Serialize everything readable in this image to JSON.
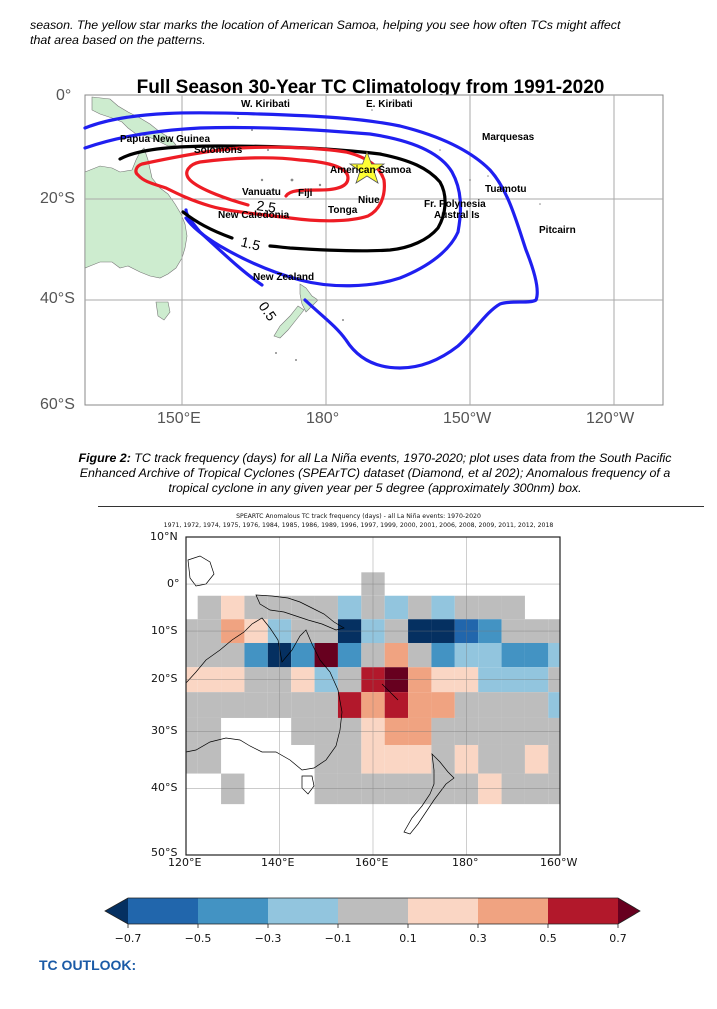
{
  "intro_text": {
    "line1": "season.  The yellow star marks the location of American Samoa, helping you see how often TCs might affect",
    "line2": "that area based on the patterns."
  },
  "figure1": {
    "title": "Full Season 30-Year TC Climatology from 1991-2020",
    "lat_labels": [
      "0°",
      "20°S",
      "40°S",
      "60°S"
    ],
    "lon_labels": [
      "150°E",
      "180°",
      "150°W",
      "120°W"
    ],
    "place_labels": [
      {
        "name": "W. Kiribati"
      },
      {
        "name": "E. Kiribati"
      },
      {
        "name": "Papua New Guinea"
      },
      {
        "name": "Solomons"
      },
      {
        "name": "Marquesas"
      },
      {
        "name": "American Samoa"
      },
      {
        "name": "Tuamotu"
      },
      {
        "name": "Vanuatu"
      },
      {
        "name": "Fiji"
      },
      {
        "name": "Niue"
      },
      {
        "name": "Tonga"
      },
      {
        "name": "Fr. Polynesia"
      },
      {
        "name": "Austral Is"
      },
      {
        "name": "New Caledonia"
      },
      {
        "name": "Pitcairn"
      },
      {
        "name": "New Zealand"
      }
    ],
    "contour_levels": [
      {
        "label": "0.5",
        "color": "#1f1ff0"
      },
      {
        "label": "1.5",
        "color": "#000000"
      },
      {
        "label": "2.5",
        "color": "#ee1c24"
      }
    ],
    "marker": {
      "type": "star",
      "location": "American Samoa",
      "color": "#ffff33"
    },
    "land_color": "#cdeccf"
  },
  "figure2": {
    "caption_bold": "Figure 2:",
    "caption_line1": " TC track frequency (days) for all La Niña events, 1970-2020; plot uses data from the South Pacific",
    "caption_line2": "Enhanced Archive of Tropical Cyclones (SPEArTC) dataset (Diamond, et al 202); Anomalous frequency of a",
    "caption_line3": "tropical cyclone in any given year per 5 degree (approximately 300nm) box."
  },
  "chart_data": {
    "type": "heatmap",
    "title": "SPEARTC Anomalous TC track frequency (days) - all La Niña events: 1970-2020",
    "subtitle": "1971, 1972, 1974, 1975, 1976, 1984, 1985, 1986, 1989, 1996, 1997, 1999, 2000, 2001, 2006, 2008, 2009, 2011, 2012, 2018",
    "x_tick_labels": [
      "120°E",
      "140°E",
      "160°E",
      "180°",
      "160°W"
    ],
    "y_tick_labels": [
      "10°N",
      "0°",
      "10°S",
      "20°S",
      "30°S",
      "40°S",
      "50°S"
    ],
    "lon_range_deg_east": [
      120,
      200
    ],
    "lat_range": [
      -50,
      10
    ],
    "cell_size_deg": 5,
    "lon_centers": [
      120,
      125,
      130,
      135,
      140,
      145,
      150,
      155,
      160,
      165,
      170,
      175,
      180,
      185,
      190,
      195,
      200
    ],
    "lat_centers": [
      0,
      -5,
      -10,
      -15,
      -20,
      -25,
      -30,
      -35,
      -40
    ],
    "note": "values are bin-center anomalies read from the discrete colorbar; null = no data (white)",
    "values": [
      [
        null,
        null,
        null,
        null,
        null,
        null,
        null,
        null,
        0.0,
        null,
        null,
        null,
        null,
        null,
        null,
        null,
        null
      ],
      [
        null,
        0.0,
        0.2,
        0.0,
        0.0,
        0.0,
        0.0,
        -0.2,
        0.0,
        -0.2,
        0.0,
        -0.2,
        0.0,
        0.0,
        0.0,
        null,
        null
      ],
      [
        0.0,
        0.0,
        0.4,
        0.2,
        -0.2,
        0.0,
        0.0,
        -0.8,
        -0.2,
        0.0,
        -0.8,
        -0.8,
        -0.6,
        -0.4,
        0.0,
        0.0,
        0.0
      ],
      [
        0.0,
        0.0,
        0.0,
        -0.4,
        -0.8,
        -0.4,
        0.8,
        -0.4,
        0.0,
        0.4,
        0.0,
        -0.4,
        -0.2,
        -0.2,
        -0.4,
        -0.4,
        -0.2
      ],
      [
        0.2,
        0.2,
        0.2,
        0.0,
        0.0,
        0.2,
        -0.2,
        0.0,
        0.6,
        0.8,
        0.4,
        0.2,
        0.2,
        -0.2,
        -0.2,
        -0.2,
        0.0
      ],
      [
        0.0,
        0.0,
        0.0,
        0.0,
        0.0,
        0.0,
        0.0,
        0.6,
        0.4,
        0.6,
        0.4,
        0.4,
        0.0,
        0.0,
        0.0,
        0.0,
        -0.2
      ],
      [
        0.0,
        0.0,
        null,
        null,
        null,
        0.0,
        0.0,
        0.0,
        0.2,
        0.4,
        0.4,
        0.0,
        0.0,
        0.0,
        0.0,
        0.0,
        0.0
      ],
      [
        0.0,
        0.0,
        null,
        null,
        null,
        null,
        0.0,
        0.0,
        0.2,
        0.2,
        0.2,
        0.0,
        0.2,
        0.0,
        0.0,
        0.2,
        0.0
      ],
      [
        null,
        null,
        0.0,
        null,
        null,
        null,
        0.0,
        0.0,
        0.0,
        0.0,
        0.0,
        0.0,
        0.0,
        0.2,
        0.0,
        0.0,
        0.0
      ]
    ],
    "colorbar": {
      "ticks": [
        "−0.7",
        "−0.5",
        "−0.3",
        "−0.1",
        "0.1",
        "0.3",
        "0.5",
        "0.7"
      ],
      "boundaries": [
        -0.7,
        -0.5,
        -0.3,
        -0.1,
        0.1,
        0.3,
        0.5,
        0.7
      ],
      "colors": [
        "#2166ac",
        "#4393c3",
        "#92c5de",
        "#bdbdbd",
        "#fad6c4",
        "#f0a381",
        "#b2182b"
      ],
      "under_color": "#053061",
      "over_color": "#67001f",
      "extend": "both",
      "placement": "bottom"
    }
  },
  "section_heading": "TC OUTLOOK:"
}
